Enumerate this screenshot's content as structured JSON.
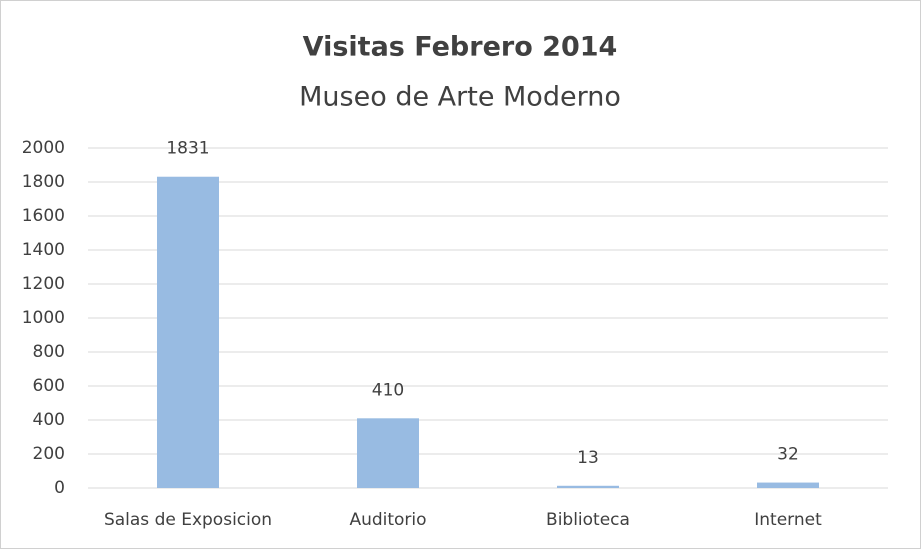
{
  "chart_data": {
    "type": "bar",
    "title": "Visitas Febrero 2014",
    "subtitle": "Museo de Arte Moderno",
    "categories": [
      "Salas de Exposicion",
      "Auditorio",
      "Biblioteca",
      "Internet"
    ],
    "values": [
      1831,
      410,
      13,
      32
    ],
    "color": "#98bbe2",
    "ylim": [
      0,
      2000
    ],
    "yticks": [
      0,
      200,
      400,
      600,
      800,
      1000,
      1200,
      1400,
      1600,
      1800,
      2000
    ],
    "grid": true
  }
}
